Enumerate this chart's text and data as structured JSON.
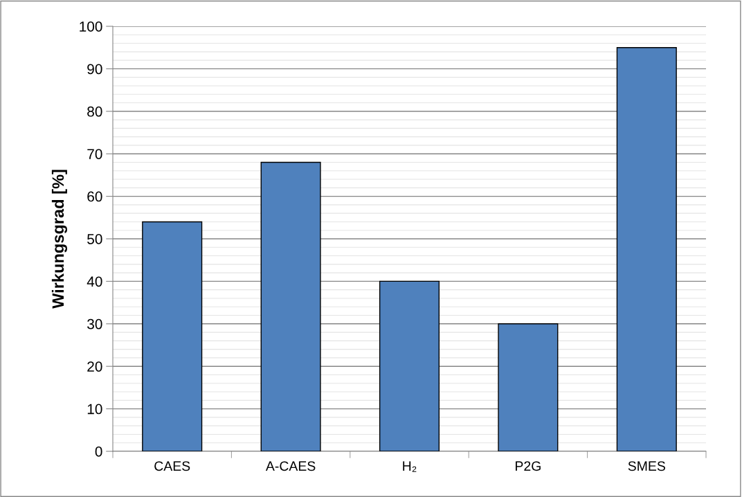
{
  "chart_data": {
    "type": "bar",
    "ylabel": "Wirkungsgrad [%]",
    "categories": [
      "CAES",
      "A-CAES",
      "H₂",
      "P2G",
      "SMES"
    ],
    "values": [
      54,
      68,
      40,
      30,
      95
    ],
    "color": "#4f81bd",
    "ylim": [
      0,
      100
    ],
    "yticks": [
      0,
      10,
      20,
      30,
      40,
      50,
      60,
      70,
      80,
      90,
      100
    ],
    "grid": "y"
  }
}
